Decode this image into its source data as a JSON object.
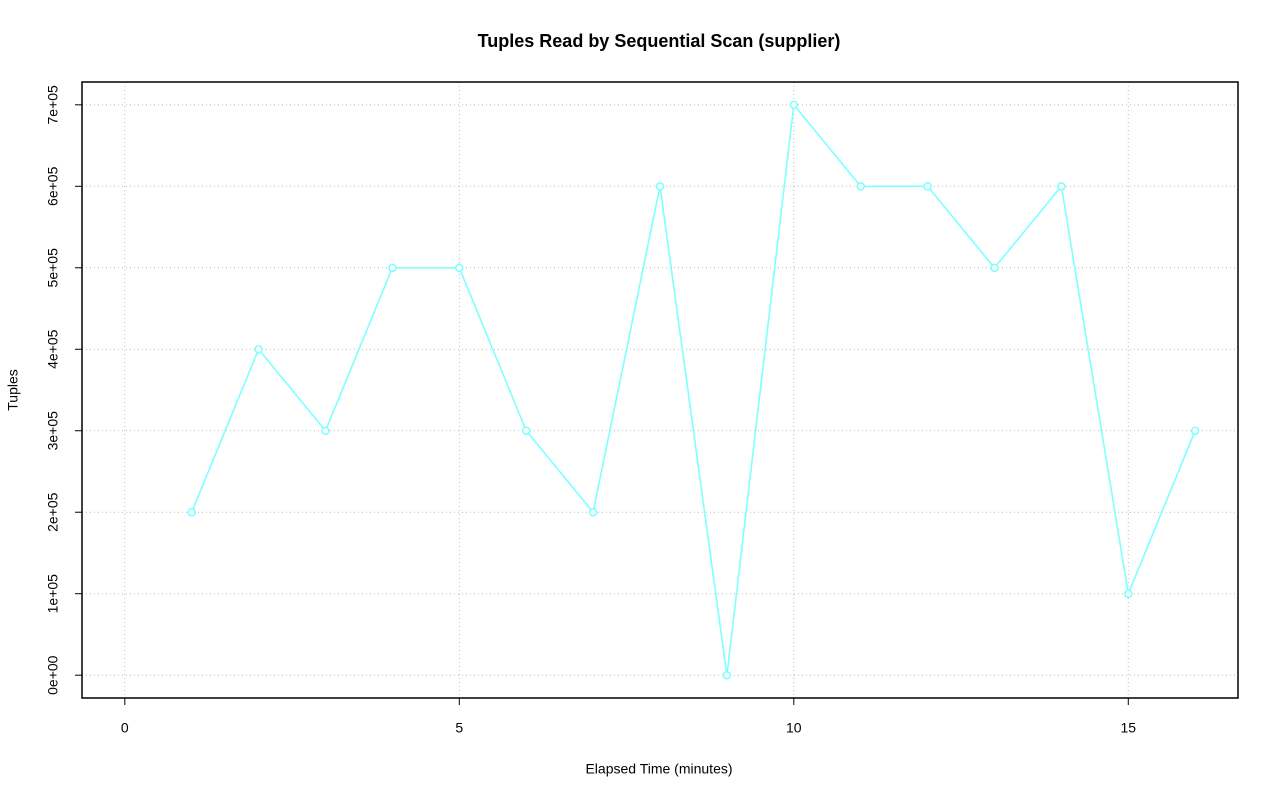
{
  "chart_data": {
    "type": "line",
    "title": "Tuples Read by Sequential Scan (supplier)",
    "xlabel": "Elapsed Time (minutes)",
    "ylabel": "Tuples",
    "x": [
      1,
      2,
      3,
      4,
      5,
      6,
      7,
      8,
      9,
      10,
      11,
      12,
      13,
      14,
      15,
      16
    ],
    "series": [
      {
        "name": "supplier",
        "color": "#80ffff",
        "values": [
          200000,
          400000,
          300000,
          500000,
          500000,
          300000,
          200000,
          600000,
          0,
          700000,
          600000,
          600000,
          500000,
          600000,
          100000,
          300000
        ]
      }
    ],
    "xlim": [
      -0.64,
      16.64
    ],
    "ylim": [
      -28000,
      728000
    ],
    "xticks": [
      0,
      5,
      10,
      15
    ],
    "yticks": [
      {
        "value": 0,
        "label": "0e+00"
      },
      {
        "value": 100000,
        "label": "1e+05"
      },
      {
        "value": 200000,
        "label": "2e+05"
      },
      {
        "value": 300000,
        "label": "3e+05"
      },
      {
        "value": 400000,
        "label": "4e+05"
      },
      {
        "value": 500000,
        "label": "5e+05"
      },
      {
        "value": 600000,
        "label": "6e+05"
      },
      {
        "value": 700000,
        "label": "7e+05"
      }
    ],
    "grid": true
  }
}
